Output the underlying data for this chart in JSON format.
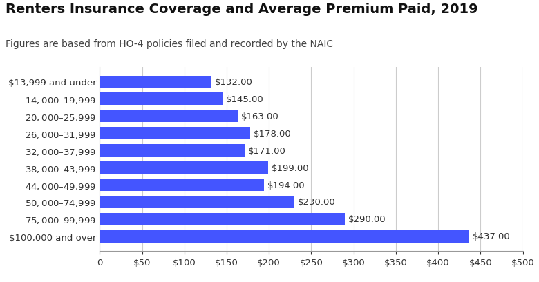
{
  "title": "Renters Insurance Coverage and Average Premium Paid, 2019",
  "subtitle": "Figures are based from HO-4 policies filed and recorded by the NAIC",
  "categories": [
    "$13,999 and under",
    "$14,000–$19,999",
    "$20,000–$25,999",
    "$26,000–$31,999",
    "$32,000–$37,999",
    "$38,000–$43,999",
    "$44,000–$49,999",
    "$50,000–$74,999",
    "$75,000–$99,999",
    "$100,000 and over"
  ],
  "values": [
    132,
    145,
    163,
    178,
    171,
    199,
    194,
    230,
    290,
    437
  ],
  "bar_color": "#4455FF",
  "label_color": "#333333",
  "background_color": "#ffffff",
  "xlim": [
    0,
    500
  ],
  "xticks": [
    0,
    50,
    100,
    150,
    200,
    250,
    300,
    350,
    400,
    450,
    500
  ],
  "title_fontsize": 14,
  "subtitle_fontsize": 10,
  "label_fontsize": 9.5,
  "tick_fontsize": 9.5,
  "bar_height": 0.72
}
